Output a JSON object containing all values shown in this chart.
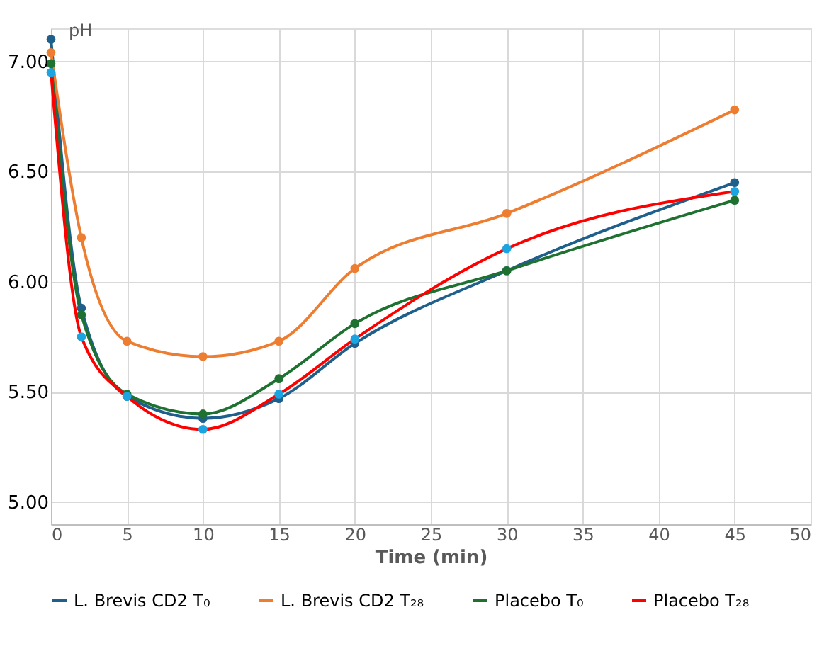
{
  "chart_data": {
    "type": "line",
    "xlabel": "Time (min)",
    "ylabel": "pH",
    "x": [
      0,
      2,
      5,
      10,
      15,
      20,
      30,
      45
    ],
    "series": [
      {
        "name": "L. Brevis CD2 T₀",
        "color": "#1f5f8b",
        "values": [
          7.1,
          5.88,
          5.48,
          5.38,
          5.47,
          5.72,
          6.05,
          6.45
        ]
      },
      {
        "name": "L. Brevis CD2 T₂₈",
        "color": "#ed7d31",
        "values": [
          7.04,
          6.2,
          5.73,
          5.66,
          5.73,
          6.06,
          6.31,
          6.78
        ]
      },
      {
        "name": "Placebo T₀",
        "color": "#1e7130",
        "values": [
          6.99,
          5.85,
          5.49,
          5.4,
          5.56,
          5.81,
          6.05,
          6.37
        ]
      },
      {
        "name": "Placebo T₂₈",
        "color": "#ff0000",
        "colors": [
          "#1ca4e0",
          "#1ca4e0",
          "#1ca4e0",
          "#1ca4e0",
          "#1ca4e0",
          "#1ca4e0",
          "#1ca4e0",
          "#1ca4e0"
        ],
        "values": [
          6.95,
          5.75,
          5.48,
          5.33,
          5.49,
          5.74,
          6.15,
          6.41
        ]
      }
    ],
    "xlim": [
      0,
      50
    ],
    "xticks": [
      0,
      5,
      10,
      15,
      20,
      25,
      30,
      35,
      40,
      45,
      50
    ],
    "ylim": [
      4.9,
      7.15
    ],
    "yticks": [
      {
        "value": 5,
        "label": "5.00"
      },
      {
        "value": 5.5,
        "label": "5.50"
      },
      {
        "value": 6,
        "label": "6.00"
      },
      {
        "value": 6.5,
        "label": "6.50"
      },
      {
        "value": 7,
        "label": "7.00"
      }
    ],
    "grid": true,
    "legend": "bottom",
    "marker": "circle",
    "line_style": "solid"
  }
}
